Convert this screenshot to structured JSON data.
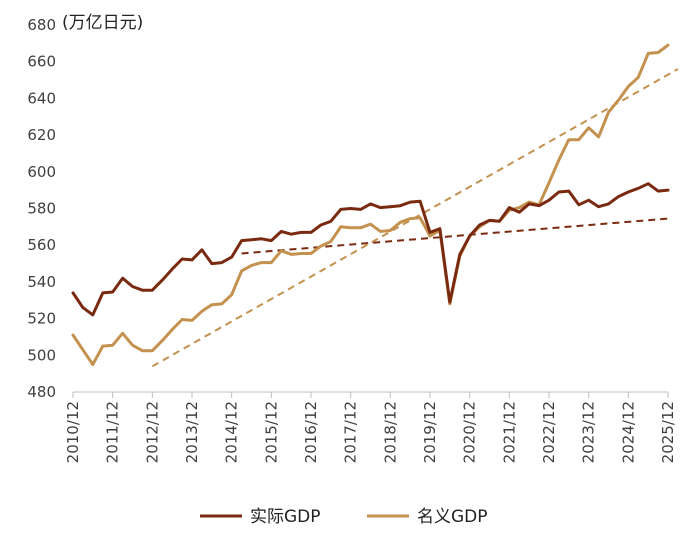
{
  "chart_data": {
    "type": "line",
    "unit_label": "(万亿日元)",
    "ylim": [
      480,
      680
    ],
    "y_ticks": [
      480,
      500,
      520,
      540,
      560,
      580,
      600,
      620,
      640,
      660,
      680
    ],
    "x_range": [
      2010.917,
      2025.917
    ],
    "x_ticks": [
      {
        "x": 2010.917,
        "label": "2010/12"
      },
      {
        "x": 2011.917,
        "label": "2011/12"
      },
      {
        "x": 2012.917,
        "label": "2012/12"
      },
      {
        "x": 2013.917,
        "label": "2013/12"
      },
      {
        "x": 2014.917,
        "label": "2014/12"
      },
      {
        "x": 2015.917,
        "label": "2015/12"
      },
      {
        "x": 2016.917,
        "label": "2016/12"
      },
      {
        "x": 2017.917,
        "label": "2017/12"
      },
      {
        "x": 2018.917,
        "label": "2018/12"
      },
      {
        "x": 2019.917,
        "label": "2019/12"
      },
      {
        "x": 2020.917,
        "label": "2020/12"
      },
      {
        "x": 2021.917,
        "label": "2021/12"
      },
      {
        "x": 2022.917,
        "label": "2022/12"
      },
      {
        "x": 2023.917,
        "label": "2023/12"
      },
      {
        "x": 2024.917,
        "label": "2024/12"
      },
      {
        "x": 2025.917,
        "label": "2025/12"
      }
    ],
    "legend_position": "bottom",
    "series": [
      {
        "name": "实际GDP",
        "color": "#7a2a10",
        "points": [
          [
            2010.917,
            534
          ],
          [
            2011.167,
            526
          ],
          [
            2011.417,
            522
          ],
          [
            2011.667,
            534
          ],
          [
            2011.917,
            534.5
          ],
          [
            2012.167,
            542
          ],
          [
            2012.417,
            537.5
          ],
          [
            2012.667,
            535.5
          ],
          [
            2012.917,
            535.5
          ],
          [
            2013.167,
            541
          ],
          [
            2013.417,
            547
          ],
          [
            2013.667,
            552.5
          ],
          [
            2013.917,
            552
          ],
          [
            2014.167,
            557.5
          ],
          [
            2014.417,
            550
          ],
          [
            2014.667,
            550.5
          ],
          [
            2014.917,
            553.5
          ],
          [
            2015.167,
            562.5
          ],
          [
            2015.417,
            563
          ],
          [
            2015.667,
            563.5
          ],
          [
            2015.917,
            562.5
          ],
          [
            2016.167,
            567.5
          ],
          [
            2016.417,
            566
          ],
          [
            2016.667,
            567
          ],
          [
            2016.917,
            567
          ],
          [
            2017.167,
            571
          ],
          [
            2017.417,
            573
          ],
          [
            2017.667,
            579.5
          ],
          [
            2017.917,
            580
          ],
          [
            2018.167,
            579.5
          ],
          [
            2018.417,
            582.5
          ],
          [
            2018.667,
            580.5
          ],
          [
            2018.917,
            581
          ],
          [
            2019.167,
            581.5
          ],
          [
            2019.417,
            583.5
          ],
          [
            2019.667,
            584
          ],
          [
            2019.917,
            567
          ],
          [
            2020.167,
            569
          ],
          [
            2020.417,
            529
          ],
          [
            2020.667,
            555
          ],
          [
            2020.917,
            565
          ],
          [
            2021.167,
            571
          ],
          [
            2021.417,
            573.5
          ],
          [
            2021.667,
            573
          ],
          [
            2021.917,
            580.5
          ],
          [
            2022.167,
            578
          ],
          [
            2022.417,
            582.5
          ],
          [
            2022.667,
            581.5
          ],
          [
            2022.917,
            584.5
          ],
          [
            2023.167,
            589
          ],
          [
            2023.417,
            589.5
          ],
          [
            2023.667,
            582
          ],
          [
            2023.917,
            584.5
          ],
          [
            2024.167,
            581
          ],
          [
            2024.417,
            582.5
          ],
          [
            2024.667,
            586.5
          ],
          [
            2024.917,
            589
          ],
          [
            2025.167,
            591
          ],
          [
            2025.417,
            593.5
          ],
          [
            2025.667,
            589.5
          ],
          [
            2025.917,
            590
          ]
        ]
      },
      {
        "name": "名义GDP",
        "color": "#c4914f",
        "points": [
          [
            2010.917,
            511
          ],
          [
            2011.167,
            503
          ],
          [
            2011.417,
            495
          ],
          [
            2011.667,
            505
          ],
          [
            2011.917,
            505.5
          ],
          [
            2012.167,
            512
          ],
          [
            2012.417,
            505.5
          ],
          [
            2012.667,
            502.5
          ],
          [
            2012.917,
            502.5
          ],
          [
            2013.167,
            508
          ],
          [
            2013.417,
            514
          ],
          [
            2013.667,
            519.5
          ],
          [
            2013.917,
            519
          ],
          [
            2014.167,
            524
          ],
          [
            2014.417,
            527.5
          ],
          [
            2014.667,
            528
          ],
          [
            2014.917,
            533
          ],
          [
            2015.167,
            546
          ],
          [
            2015.417,
            549
          ],
          [
            2015.667,
            550.5
          ],
          [
            2015.917,
            550.5
          ],
          [
            2016.167,
            557
          ],
          [
            2016.417,
            555
          ],
          [
            2016.667,
            555.5
          ],
          [
            2016.917,
            555.5
          ],
          [
            2017.167,
            559.5
          ],
          [
            2017.417,
            562
          ],
          [
            2017.667,
            570
          ],
          [
            2017.917,
            569.5
          ],
          [
            2018.167,
            569.5
          ],
          [
            2018.417,
            571.5
          ],
          [
            2018.667,
            567.5
          ],
          [
            2018.917,
            568
          ],
          [
            2019.167,
            572.5
          ],
          [
            2019.417,
            574.5
          ],
          [
            2019.667,
            575
          ],
          [
            2019.917,
            565
          ],
          [
            2020.167,
            568
          ],
          [
            2020.417,
            528
          ],
          [
            2020.667,
            554
          ],
          [
            2020.917,
            565
          ],
          [
            2021.167,
            570
          ],
          [
            2021.417,
            573.5
          ],
          [
            2021.667,
            573
          ],
          [
            2021.917,
            579
          ],
          [
            2022.167,
            580.5
          ],
          [
            2022.417,
            583.5
          ],
          [
            2022.667,
            582
          ],
          [
            2022.917,
            594
          ],
          [
            2023.167,
            606.5
          ],
          [
            2023.417,
            617.5
          ],
          [
            2023.667,
            617.5
          ],
          [
            2023.917,
            624
          ],
          [
            2024.167,
            619
          ],
          [
            2024.417,
            632.5
          ],
          [
            2024.667,
            639
          ],
          [
            2024.917,
            646.5
          ],
          [
            2025.167,
            651.5
          ],
          [
            2025.417,
            664.5
          ],
          [
            2025.667,
            665
          ],
          [
            2025.917,
            669
          ]
        ]
      }
    ],
    "trend_lines": [
      {
        "name": "实际GDP趋势",
        "color": "#7a2a10",
        "from": [
          2015.167,
          555.5
        ],
        "to": [
          2025.917,
          574.5
        ]
      },
      {
        "name": "名义GDP趋势",
        "color": "#c4914f",
        "from": [
          2012.917,
          494
        ],
        "to": [
          2026.167,
          656
        ]
      }
    ]
  }
}
